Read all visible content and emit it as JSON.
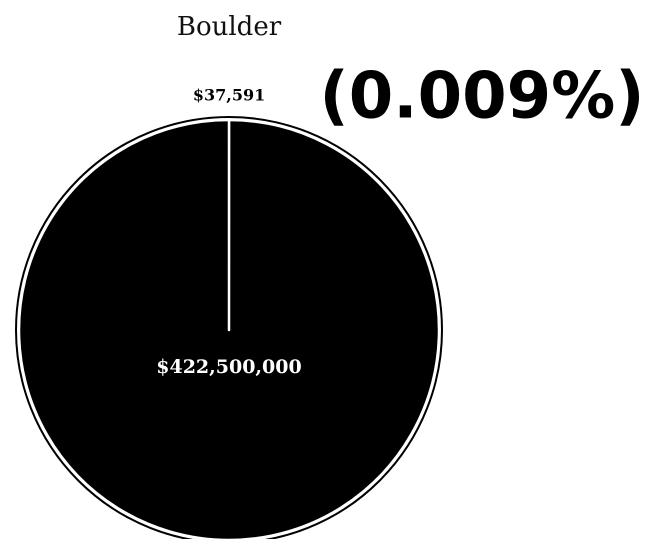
{
  "chart_data": {
    "type": "pie",
    "title": "Boulder",
    "annotation": "(0.009%)",
    "values": [
      37591,
      422500000
    ],
    "value_labels": [
      "$37,591",
      "$422,500,000"
    ],
    "color": "#000000"
  }
}
